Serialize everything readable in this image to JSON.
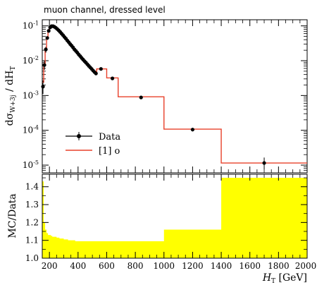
{
  "chart_data": [
    {
      "type": "line",
      "title": "muon channel, dressed level",
      "ylabel": "dσ_W+3j / dH_T",
      "yscale": "log",
      "ylim": [
        6e-06,
        0.15
      ],
      "xlim": [
        150,
        2000
      ],
      "yticks": [
        {
          "exp": "-1",
          "value": 0.1
        },
        {
          "exp": "-2",
          "value": 0.01
        },
        {
          "exp": "-3",
          "value": 0.001
        },
        {
          "exp": "-4",
          "value": 0.0001
        },
        {
          "exp": "-5",
          "value": 1e-05
        }
      ],
      "legend": {
        "placement": "lower-left",
        "entries": [
          "Data",
          "[1] o"
        ]
      },
      "series": [
        {
          "name": "Data",
          "color": "#000000",
          "x": [
            155,
            165,
            175,
            185,
            195,
            205,
            215,
            225,
            235,
            245,
            255,
            265,
            275,
            285,
            295,
            305,
            315,
            325,
            335,
            345,
            355,
            365,
            375,
            385,
            395,
            405,
            415,
            425,
            435,
            445,
            455,
            465,
            475,
            485,
            495,
            505,
            515,
            525,
            560,
            640,
            840,
            1200,
            1700
          ],
          "y": [
            0.0018,
            0.0075,
            0.021,
            0.045,
            0.072,
            0.09,
            0.098,
            0.098,
            0.094,
            0.088,
            0.081,
            0.074,
            0.067,
            0.06,
            0.054,
            0.048,
            0.043,
            0.038,
            0.034,
            0.03,
            0.027,
            0.024,
            0.021,
            0.019,
            0.017,
            0.015,
            0.0135,
            0.012,
            0.0108,
            0.0097,
            0.0088,
            0.0079,
            0.0071,
            0.0064,
            0.0058,
            0.0052,
            0.0047,
            0.0043,
            0.0058,
            0.0031,
            0.00088,
            0.000105,
            1.15e-05
          ],
          "yerr_up": [
            0.0009,
            0.0025,
            0.004,
            0.005,
            0.005,
            0.005,
            0.005,
            0.005,
            0.005,
            0.004,
            0.004,
            0.004,
            0.003,
            0.003,
            0.003,
            0.003,
            0.002,
            0.002,
            0.002,
            0.002,
            0.0015,
            0.0013,
            0.0012,
            0.001,
            0.0009,
            0.0008,
            0.0007,
            0.0006,
            0.0006,
            0.0005,
            0.0005,
            0.0004,
            0.0004,
            0.0004,
            0.0003,
            0.0003,
            0.0003,
            0.0003,
            0.0004,
            0.0002,
            6e-05,
            1.2e-05,
            5e-06
          ],
          "yerr_down": [
            0.0007,
            0.002,
            0.004,
            0.005,
            0.005,
            0.005,
            0.005,
            0.005,
            0.005,
            0.004,
            0.004,
            0.004,
            0.003,
            0.003,
            0.003,
            0.003,
            0.002,
            0.002,
            0.002,
            0.002,
            0.0015,
            0.0013,
            0.0012,
            0.001,
            0.0009,
            0.0008,
            0.0007,
            0.0006,
            0.0006,
            0.0005,
            0.0005,
            0.0004,
            0.0004,
            0.0004,
            0.0003,
            0.0003,
            0.0003,
            0.0003,
            0.0004,
            0.0002,
            6e-05,
            1.2e-05,
            4e-06
          ]
        },
        {
          "name": "[1] o",
          "color": "#e8402a",
          "style": "step",
          "edges": [
            150,
            160,
            170,
            180,
            190,
            200,
            210,
            220,
            230,
            240,
            250,
            260,
            270,
            280,
            290,
            300,
            310,
            320,
            330,
            340,
            350,
            360,
            370,
            380,
            390,
            400,
            410,
            420,
            430,
            440,
            450,
            460,
            470,
            480,
            490,
            500,
            510,
            520,
            530,
            600,
            680,
            1000,
            1400,
            2000
          ],
          "values": [
            0.0024,
            0.0082,
            0.023,
            0.048,
            0.075,
            0.092,
            0.099,
            0.099,
            0.095,
            0.089,
            0.082,
            0.075,
            0.068,
            0.061,
            0.055,
            0.049,
            0.044,
            0.039,
            0.035,
            0.031,
            0.028,
            0.025,
            0.022,
            0.0195,
            0.0175,
            0.0155,
            0.014,
            0.0125,
            0.0112,
            0.01,
            0.009,
            0.0081,
            0.0073,
            0.0066,
            0.006,
            0.0054,
            0.0049,
            0.0045,
            0.0058,
            0.0032,
            0.00092,
            0.000108,
            1.15e-05
          ]
        }
      ]
    },
    {
      "type": "area",
      "ylabel": "MC/Data",
      "xlabel": "H_T [GeV]",
      "xlim": [
        150,
        2000
      ],
      "ylim": [
        1.0,
        1.47
      ],
      "xticks": [
        "200",
        "400",
        "600",
        "800",
        "1000",
        "1200",
        "1400",
        "1600",
        "1800",
        "2000"
      ],
      "yticks": [
        "1.0",
        "1.1",
        "1.2",
        "1.3",
        "1.4"
      ],
      "band_color": "#ffff00",
      "band": {
        "edges": [
          150,
          160,
          170,
          180,
          190,
          200,
          210,
          220,
          230,
          240,
          250,
          260,
          270,
          280,
          290,
          300,
          310,
          320,
          330,
          340,
          350,
          360,
          370,
          380,
          390,
          400,
          410,
          420,
          430,
          440,
          450,
          460,
          470,
          480,
          490,
          500,
          510,
          520,
          530,
          600,
          680,
          1000,
          1400,
          2000
        ],
        "upper": [
          1.43,
          1.2,
          1.16,
          1.14,
          1.13,
          1.13,
          1.125,
          1.12,
          1.12,
          1.12,
          1.115,
          1.115,
          1.11,
          1.11,
          1.11,
          1.105,
          1.105,
          1.105,
          1.1,
          1.1,
          1.1,
          1.1,
          1.1,
          1.095,
          1.095,
          1.095,
          1.095,
          1.095,
          1.095,
          1.095,
          1.095,
          1.095,
          1.095,
          1.095,
          1.095,
          1.095,
          1.095,
          1.095,
          1.095,
          1.095,
          1.095,
          1.16,
          1.45
        ]
      }
    }
  ]
}
